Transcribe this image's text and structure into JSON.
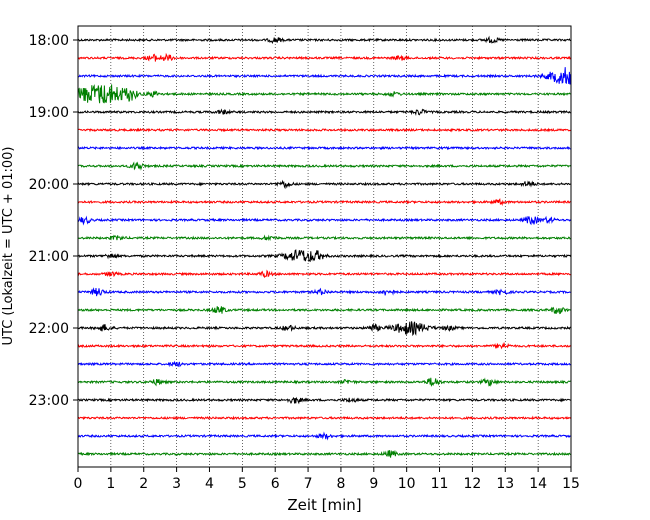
{
  "chart_data": {
    "type": "line",
    "title": "",
    "xlabel": "Zeit  [min]",
    "ylabel": "UTC (Lokalzeit = UTC + 01:00)",
    "xlim": [
      0,
      15
    ],
    "x_ticks": [
      "0",
      "1",
      "2",
      "3",
      "4",
      "5",
      "6",
      "7",
      "8",
      "9",
      "10",
      "11",
      "12",
      "13",
      "14",
      "15"
    ],
    "y_ticks": [
      "18:00",
      "19:00",
      "20:00",
      "21:00",
      "22:00",
      "23:00"
    ],
    "grid": "vertical-dotted",
    "trace_interval_min": 15,
    "color_cycle": [
      "#000000",
      "#ff0000",
      "#0000ff",
      "#008000"
    ],
    "traces": [
      {
        "start": "18:00",
        "color": "#000000",
        "events": [
          [
            6.0,
            4
          ],
          [
            12.6,
            4
          ]
        ]
      },
      {
        "start": "18:15",
        "color": "#ff0000",
        "events": [
          [
            2.3,
            5
          ],
          [
            2.7,
            5
          ],
          [
            9.8,
            3
          ]
        ]
      },
      {
        "start": "18:30",
        "color": "#0000ff",
        "events": [
          [
            14.85,
            14
          ]
        ]
      },
      {
        "start": "18:45",
        "color": "#008000",
        "events": [
          [
            0.3,
            12
          ],
          [
            1.0,
            14
          ],
          [
            1.6,
            8
          ],
          [
            2.3,
            4
          ],
          [
            9.6,
            3
          ]
        ]
      },
      {
        "start": "19:00",
        "color": "#000000",
        "events": [
          [
            4.4,
            3
          ],
          [
            10.4,
            4
          ]
        ]
      },
      {
        "start": "19:15",
        "color": "#ff0000",
        "events": []
      },
      {
        "start": "19:30",
        "color": "#0000ff",
        "events": []
      },
      {
        "start": "19:45",
        "color": "#008000",
        "events": [
          [
            1.8,
            6
          ]
        ]
      },
      {
        "start": "20:00",
        "color": "#000000",
        "events": [
          [
            6.3,
            5
          ],
          [
            13.7,
            4
          ]
        ]
      },
      {
        "start": "20:15",
        "color": "#ff0000",
        "events": [
          [
            12.8,
            3
          ]
        ]
      },
      {
        "start": "20:30",
        "color": "#0000ff",
        "events": [
          [
            0.2,
            5
          ],
          [
            13.8,
            7
          ],
          [
            14.3,
            4
          ]
        ]
      },
      {
        "start": "20:45",
        "color": "#008000",
        "events": [
          [
            1.2,
            3
          ],
          [
            5.8,
            3
          ]
        ]
      },
      {
        "start": "21:00",
        "color": "#000000",
        "events": [
          [
            6.8,
            10
          ],
          [
            7.3,
            4
          ],
          [
            1.0,
            3
          ]
        ]
      },
      {
        "start": "21:15",
        "color": "#ff0000",
        "events": [
          [
            5.7,
            4
          ],
          [
            1.0,
            3
          ]
        ]
      },
      {
        "start": "21:30",
        "color": "#0000ff",
        "events": [
          [
            0.6,
            6
          ],
          [
            9.4,
            5
          ],
          [
            7.4,
            4
          ],
          [
            12.9,
            4
          ]
        ]
      },
      {
        "start": "21:45",
        "color": "#008000",
        "events": [
          [
            4.3,
            6
          ],
          [
            14.6,
            6
          ]
        ]
      },
      {
        "start": "22:00",
        "color": "#000000",
        "events": [
          [
            10.1,
            10
          ],
          [
            9.0,
            5
          ],
          [
            0.8,
            5
          ],
          [
            6.4,
            4
          ],
          [
            11.3,
            3
          ]
        ]
      },
      {
        "start": "22:15",
        "color": "#ff0000",
        "events": [
          [
            12.9,
            5
          ]
        ]
      },
      {
        "start": "22:30",
        "color": "#0000ff",
        "events": [
          [
            3.0,
            3
          ]
        ]
      },
      {
        "start": "22:45",
        "color": "#008000",
        "events": [
          [
            10.8,
            7
          ],
          [
            12.5,
            5
          ],
          [
            2.4,
            4
          ],
          [
            8.2,
            3
          ]
        ]
      },
      {
        "start": "23:00",
        "color": "#000000",
        "events": [
          [
            6.6,
            5
          ],
          [
            8.3,
            3
          ]
        ]
      },
      {
        "start": "23:15",
        "color": "#ff0000",
        "events": []
      },
      {
        "start": "23:30",
        "color": "#0000ff",
        "events": [
          [
            7.5,
            4
          ]
        ]
      },
      {
        "start": "23:45",
        "color": "#008000",
        "events": [
          [
            9.5,
            5
          ]
        ]
      }
    ]
  }
}
